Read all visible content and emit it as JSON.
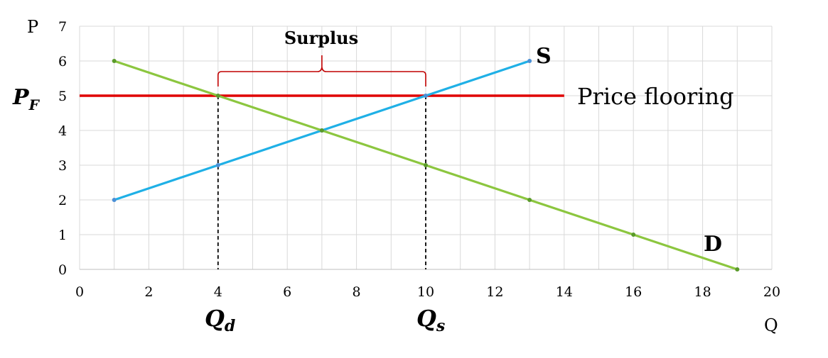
{
  "chart_data": {
    "type": "line",
    "xlabel": "Q",
    "ylabel": "P",
    "xlim": [
      0,
      20
    ],
    "ylim": [
      0,
      7
    ],
    "x_ticks": [
      "0",
      "2",
      "4",
      "6",
      "8",
      "10",
      "12",
      "14",
      "16",
      "18",
      "20"
    ],
    "y_ticks": [
      "0",
      "1",
      "2",
      "3",
      "4",
      "5",
      "6",
      "7"
    ],
    "grid": true,
    "series": [
      {
        "name": "S",
        "color": "#1fb0e6",
        "x": [
          1,
          4,
          7,
          10,
          13
        ],
        "y": [
          2,
          3,
          4,
          5,
          6
        ]
      },
      {
        "name": "D",
        "color": "#8cc63f",
        "x": [
          1,
          4,
          7,
          10,
          13,
          16,
          19
        ],
        "y": [
          6,
          5,
          4,
          3,
          2,
          1,
          0
        ]
      }
    ],
    "price_floor": {
      "label": "Price flooring",
      "y": 5,
      "x_start": 0,
      "x_end": 14,
      "color": "#e00000"
    },
    "y_marker": {
      "base": "P",
      "sub": "F",
      "value": 5
    },
    "annotations": {
      "surplus": "Surplus",
      "qd": {
        "base": "Q",
        "sub": "d",
        "x": 4
      },
      "qs": {
        "base": "Q",
        "sub": "s",
        "x": 10
      }
    }
  }
}
